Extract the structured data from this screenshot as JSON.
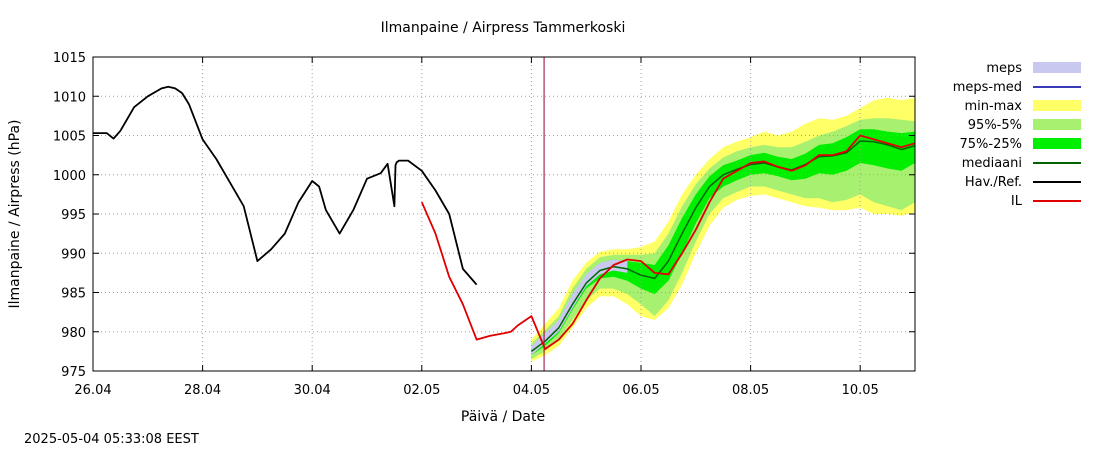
{
  "chart_data": {
    "type": "line",
    "title": "Ilmanpaine / Airpress Tammerkoski",
    "xlabel": "Päivä / Date",
    "ylabel": "Ilmanpaine / Airpress (hPa)",
    "timestamp": "2025-05-04 05:33:08 EEST",
    "x_unit": "day",
    "xlim": [
      "2025-04-26",
      "2025-05-11"
    ],
    "ylim": [
      975,
      1015
    ],
    "grid": true,
    "legend_position": "right",
    "x_ticks": [
      {
        "x": "2025-04-26",
        "label": "26.04"
      },
      {
        "x": "2025-04-28",
        "label": "28.04"
      },
      {
        "x": "2025-04-30",
        "label": "30.04"
      },
      {
        "x": "2025-05-02",
        "label": "02.05"
      },
      {
        "x": "2025-05-04",
        "label": "04.05"
      },
      {
        "x": "2025-05-06",
        "label": "06.05"
      },
      {
        "x": "2025-05-08",
        "label": "08.05"
      },
      {
        "x": "2025-05-10",
        "label": "10.05"
      }
    ],
    "y_ticks": [
      975,
      980,
      985,
      990,
      995,
      1000,
      1005,
      1010,
      1015
    ],
    "current_time": "2025-05-04 05:33",
    "legend": [
      {
        "label": "meps",
        "kind": "box",
        "color": "#c8c8f0"
      },
      {
        "label": "meps-med",
        "kind": "line",
        "color": "#3a3ab8"
      },
      {
        "label": "min-max",
        "kind": "box",
        "color": "#ffff66"
      },
      {
        "label": "95%-5%",
        "kind": "box",
        "color": "#a8f070"
      },
      {
        "label": "75%-25%",
        "kind": "box",
        "color": "#00ee00"
      },
      {
        "label": "mediaani",
        "kind": "line",
        "color": "#006400"
      },
      {
        "label": "Hav./Ref.",
        "kind": "line",
        "color": "#000000"
      },
      {
        "label": "IL",
        "kind": "line",
        "color": "#e00000"
      }
    ],
    "colors": {
      "meps": "#c8c8f0",
      "min_max": "#ffff66",
      "p95_p5": "#a8f070",
      "p75_p25": "#00ee00",
      "median": "#006400",
      "observed": "#000000",
      "il": "#e00000",
      "now_line": "#990033"
    },
    "observed": {
      "x": [
        "2025-04-26 00:00",
        "2025-04-26 06:00",
        "2025-04-26 09:00",
        "2025-04-26 12:00",
        "2025-04-26 18:00",
        "2025-04-27 00:00",
        "2025-04-27 06:00",
        "2025-04-27 09:00",
        "2025-04-27 12:00",
        "2025-04-27 15:00",
        "2025-04-27 18:00",
        "2025-04-28 00:00",
        "2025-04-28 06:00",
        "2025-04-28 12:00",
        "2025-04-28 18:00",
        "2025-04-29 00:00",
        "2025-04-29 06:00",
        "2025-04-29 12:00",
        "2025-04-29 18:00",
        "2025-04-30 00:00",
        "2025-04-30 03:00",
        "2025-04-30 06:00",
        "2025-04-30 12:00",
        "2025-04-30 18:00",
        "2025-05-01 00:00",
        "2025-05-01 06:00",
        "2025-05-01 09:00",
        "2025-05-01 12:00",
        "2025-05-01 12:30",
        "2025-05-01 13:00",
        "2025-05-01 14:00",
        "2025-05-01 18:00",
        "2025-05-02 00:00",
        "2025-05-02 06:00",
        "2025-05-02 12:00",
        "2025-05-02 18:00",
        "2025-05-03 00:00"
      ],
      "y": [
        1005.3,
        1005.3,
        1004.6,
        1005.6,
        1008.6,
        1010.0,
        1011.0,
        1011.2,
        1011.0,
        1010.4,
        1009.0,
        1004.5,
        1002.0,
        999.0,
        996.0,
        989.0,
        990.5,
        992.5,
        996.5,
        999.2,
        998.5,
        995.5,
        992.5,
        995.5,
        999.5,
        1000.2,
        1001.4,
        996.0,
        1001.2,
        1001.6,
        1001.8,
        1001.8,
        1000.5,
        998.0,
        995.0,
        988.0,
        986.0
      ]
    },
    "il": {
      "x": [
        "2025-05-02 00:00",
        "2025-05-02 06:00",
        "2025-05-02 12:00",
        "2025-05-02 18:00",
        "2025-05-03 00:00",
        "2025-05-03 06:00",
        "2025-05-03 12:00",
        "2025-05-03 15:00",
        "2025-05-03 18:00",
        "2025-05-04 00:00",
        "2025-05-04 06:00",
        "2025-05-04 12:00",
        "2025-05-04 18:00",
        "2025-05-05 00:00",
        "2025-05-05 06:00",
        "2025-05-05 12:00",
        "2025-05-05 18:00",
        "2025-05-06 00:00",
        "2025-05-06 06:00",
        "2025-05-06 12:00",
        "2025-05-06 18:00",
        "2025-05-07 00:00",
        "2025-05-07 06:00",
        "2025-05-07 12:00",
        "2025-05-07 18:00",
        "2025-05-08 00:00",
        "2025-05-08 06:00",
        "2025-05-08 12:00",
        "2025-05-08 18:00",
        "2025-05-09 00:00",
        "2025-05-09 06:00",
        "2025-05-09 12:00",
        "2025-05-09 18:00",
        "2025-05-10 00:00",
        "2025-05-10 06:00",
        "2025-05-10 12:00",
        "2025-05-10 18:00",
        "2025-05-11 00:00"
      ],
      "y": [
        996.5,
        992.5,
        987.0,
        983.5,
        979.0,
        979.5,
        979.8,
        980.0,
        980.8,
        982.0,
        977.8,
        979.0,
        981.0,
        984.0,
        986.8,
        988.5,
        989.2,
        989.0,
        987.5,
        987.3,
        990.0,
        993.0,
        996.5,
        999.5,
        1000.5,
        1001.5,
        1001.7,
        1001.0,
        1000.5,
        1001.2,
        1002.5,
        1002.5,
        1003.0,
        1005.0,
        1004.5,
        1004.0,
        1003.5,
        1004.0
      ]
    },
    "ensemble": {
      "x": [
        "2025-05-04 00:00",
        "2025-05-04 06:00",
        "2025-05-04 12:00",
        "2025-05-04 18:00",
        "2025-05-05 00:00",
        "2025-05-05 06:00",
        "2025-05-05 12:00",
        "2025-05-05 18:00",
        "2025-05-06 00:00",
        "2025-05-06 06:00",
        "2025-05-06 12:00",
        "2025-05-06 18:00",
        "2025-05-07 00:00",
        "2025-05-07 06:00",
        "2025-05-07 12:00",
        "2025-05-07 18:00",
        "2025-05-08 00:00",
        "2025-05-08 06:00",
        "2025-05-08 12:00",
        "2025-05-08 18:00",
        "2025-05-09 00:00",
        "2025-05-09 06:00",
        "2025-05-09 12:00",
        "2025-05-09 18:00",
        "2025-05-10 00:00",
        "2025-05-10 06:00",
        "2025-05-10 12:00",
        "2025-05-10 18:00",
        "2025-05-11 00:00"
      ],
      "median": [
        977.5,
        978.8,
        980.5,
        983.5,
        986.2,
        987.8,
        988.3,
        988.0,
        987.2,
        986.8,
        989.0,
        992.5,
        995.8,
        998.5,
        1000.0,
        1000.7,
        1001.3,
        1001.5,
        1001.0,
        1000.6,
        1001.3,
        1002.3,
        1002.4,
        1002.8,
        1004.3,
        1004.2,
        1003.8,
        1003.2,
        1003.7
      ],
      "p25": [
        977.0,
        978.2,
        979.8,
        982.8,
        985.5,
        986.8,
        987.0,
        986.5,
        985.5,
        984.8,
        986.5,
        990.0,
        993.8,
        997.0,
        998.5,
        999.3,
        1000.0,
        1000.2,
        999.8,
        999.3,
        999.5,
        1000.2,
        1000.0,
        1000.5,
        1001.5,
        1001.2,
        1000.8,
        1000.5,
        1001.5
      ],
      "p75": [
        978.0,
        979.5,
        981.3,
        984.5,
        987.2,
        988.8,
        989.2,
        989.0,
        988.8,
        988.5,
        991.0,
        994.5,
        997.5,
        999.8,
        1001.2,
        1001.8,
        1002.5,
        1002.8,
        1002.3,
        1002.0,
        1002.7,
        1003.8,
        1004.0,
        1004.8,
        1005.8,
        1005.8,
        1005.5,
        1005.3,
        1005.5
      ],
      "p5": [
        976.5,
        977.5,
        979.0,
        981.5,
        984.0,
        985.5,
        985.5,
        984.8,
        983.5,
        982.0,
        984.0,
        987.5,
        991.5,
        995.0,
        997.0,
        997.8,
        998.5,
        998.5,
        998.0,
        997.5,
        997.0,
        997.0,
        996.5,
        996.8,
        997.5,
        996.5,
        996.0,
        995.5,
        996.5
      ],
      "p95": [
        978.5,
        980.2,
        982.0,
        985.5,
        988.0,
        989.5,
        989.8,
        989.8,
        989.8,
        990.0,
        992.5,
        996.0,
        998.8,
        1000.8,
        1002.2,
        1003.0,
        1003.5,
        1003.8,
        1003.5,
        1003.5,
        1004.2,
        1005.0,
        1005.5,
        1006.2,
        1007.0,
        1007.2,
        1007.2,
        1007.0,
        1006.8
      ],
      "min": [
        976.2,
        977.0,
        978.2,
        980.5,
        983.0,
        984.5,
        984.5,
        983.5,
        982.0,
        981.5,
        983.0,
        986.0,
        990.0,
        993.5,
        995.8,
        996.8,
        997.3,
        997.5,
        997.0,
        996.5,
        996.0,
        995.8,
        995.5,
        995.5,
        995.8,
        995.0,
        995.0,
        994.8,
        995.2
      ],
      "max": [
        979.0,
        981.0,
        983.0,
        986.5,
        988.8,
        990.2,
        990.5,
        990.5,
        990.8,
        991.5,
        994.0,
        997.5,
        1000.0,
        1002.0,
        1003.5,
        1004.2,
        1004.8,
        1005.5,
        1005.0,
        1005.5,
        1006.5,
        1007.2,
        1007.0,
        1007.5,
        1008.5,
        1009.5,
        1009.8,
        1009.5,
        1009.8
      ],
      "meps_low": [
        977.0,
        978.5,
        980.0,
        983.0,
        985.8,
        987.3,
        987.8,
        987.5
      ],
      "meps_high": [
        978.2,
        979.8,
        981.5,
        984.8,
        987.3,
        988.8,
        989.2,
        989.0
      ]
    }
  }
}
